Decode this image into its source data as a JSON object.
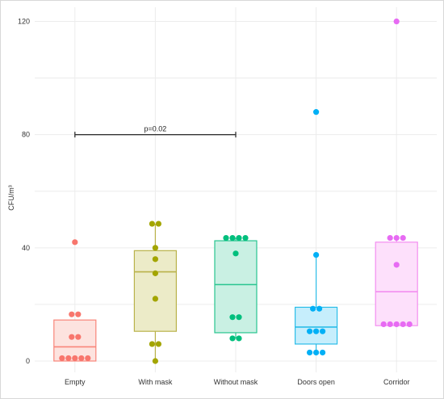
{
  "chart_data": {
    "type": "box",
    "title": "",
    "xlabel": "",
    "ylabel": "CFU/m³",
    "ylim": [
      -4,
      125
    ],
    "yticks": [
      0,
      40,
      80,
      120
    ],
    "grid": true,
    "categories": [
      "Empty",
      "With mask",
      "Without mask",
      "Doors open",
      "Corridor"
    ],
    "colors": {
      "Empty": {
        "fill": "#fde3df",
        "stroke": "#f8857a",
        "point": "#f8766d"
      },
      "With mask": {
        "fill": "#ecebc8",
        "stroke": "#b9b24a",
        "point": "#a3a500"
      },
      "Without mask": {
        "fill": "#c9f0e3",
        "stroke": "#28c590",
        "point": "#00bf7d"
      },
      "Doors open": {
        "fill": "#c6eefc",
        "stroke": "#2bbde8",
        "point": "#00b0f6"
      },
      "Corridor": {
        "fill": "#fde0fb",
        "stroke": "#f38ef0",
        "point": "#e76bf3"
      }
    },
    "boxes": [
      {
        "category": "Empty",
        "q1": 0,
        "median": 5,
        "q3": 14.5,
        "whisker_low": 0,
        "whisker_high": 14.5
      },
      {
        "category": "With mask",
        "q1": 10.5,
        "median": 31.5,
        "q3": 39,
        "whisker_low": 0,
        "whisker_high": 48.5
      },
      {
        "category": "Without mask",
        "q1": 10,
        "median": 27,
        "q3": 42.5,
        "whisker_low": 8,
        "whisker_high": 43.5
      },
      {
        "category": "Doors open",
        "q1": 6,
        "median": 12,
        "q3": 19,
        "whisker_low": 3,
        "whisker_high": 37.5
      },
      {
        "category": "Corridor",
        "q1": 12.5,
        "median": 24.5,
        "q3": 42,
        "whisker_low": 12.5,
        "whisker_high": 43.5
      }
    ],
    "points": [
      {
        "category": "Empty",
        "values": [
          1,
          1,
          1,
          1,
          1,
          8.5,
          8.5,
          16.5,
          16.5,
          42
        ]
      },
      {
        "category": "With mask",
        "values": [
          0,
          6,
          6,
          22,
          31,
          36,
          40,
          48.5,
          48.5
        ]
      },
      {
        "category": "Without mask",
        "values": [
          8,
          8,
          15.5,
          15.5,
          38,
          43.5,
          43.5,
          43.5,
          43.5
        ]
      },
      {
        "category": "Doors open",
        "values": [
          3,
          3,
          3,
          10.5,
          10.5,
          10.5,
          18.5,
          18.5,
          37.5,
          88
        ]
      },
      {
        "category": "Corridor",
        "values": [
          13,
          13,
          13,
          13,
          13,
          34,
          43.5,
          43.5,
          43.5,
          120
        ]
      }
    ],
    "annotations": [
      {
        "label": "p=0.02",
        "from": "Empty",
        "to": "Without mask",
        "y": 80
      }
    ]
  }
}
